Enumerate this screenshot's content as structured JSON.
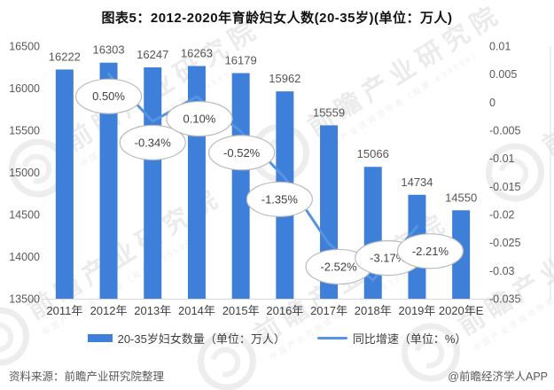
{
  "title": "图表5：2012-2020年育龄妇女人数(20-35岁)(单位：万人)",
  "watermark": {
    "logo_name": "qianzhan-swirl-logo",
    "text": "前瞻产业研究院",
    "subtext": "中国产业咨询领导者（股票·839599）"
  },
  "chart_data": {
    "type": "bar+line",
    "title": "图表5：2012-2020年育龄妇女人数(20-35岁)(单位：万人)",
    "categories": [
      "2011年",
      "2012年",
      "2013年",
      "2014年",
      "2015年",
      "2016年",
      "2017年",
      "2018年",
      "2019年",
      "2020年E"
    ],
    "series": [
      {
        "name": "20-35岁妇女数量（单位：万人）",
        "type": "bar",
        "axis": "left",
        "color": "#3E7FD9",
        "values": [
          16222,
          16303,
          16247,
          16263,
          16179,
          15962,
          15559,
          15066,
          14734,
          14550
        ]
      },
      {
        "name": "同比增速（单位：%）",
        "type": "line",
        "axis": "right",
        "color": "#5694E2",
        "values": [
          null,
          0.005,
          -0.0034,
          0.001,
          -0.0052,
          -0.0135,
          -0.0252,
          -0.0317,
          -0.0221,
          null
        ],
        "point_labels": [
          null,
          "0.50%",
          "-0.34%",
          "0.10%",
          "-0.52%",
          "-1.35%",
          "-2.52%",
          "-3.17%",
          "-2.21%",
          null
        ]
      }
    ],
    "left_axis": {
      "min": 13500,
      "max": 16500,
      "tick_step": 500,
      "ticks": [
        "16500",
        "16000",
        "15500",
        "15000",
        "14500",
        "14000",
        "13500"
      ]
    },
    "right_axis": {
      "min": -0.035,
      "max": 0.01,
      "tick_step": 0.005,
      "ticks": [
        "0.01",
        "0.005",
        "0",
        "-0.005",
        "-0.01",
        "-0.015",
        "-0.02",
        "-0.025",
        "-0.03",
        "-0.035"
      ]
    },
    "grid": false,
    "legend_position": "bottom",
    "bar_label_color": "#555555",
    "axis_label_color": "#595959",
    "callout_fill": "#ffffff",
    "callout_stroke": "#bbbbbb"
  },
  "legend": [
    {
      "label": "20-35岁妇女数量（单位：万人）",
      "type": "bar"
    },
    {
      "label": "同比增速（单位：%）",
      "type": "line"
    }
  ],
  "footer": {
    "source": "资料来源：前瞻产业研究院整理",
    "brand": "@前瞻经济学人APP"
  }
}
